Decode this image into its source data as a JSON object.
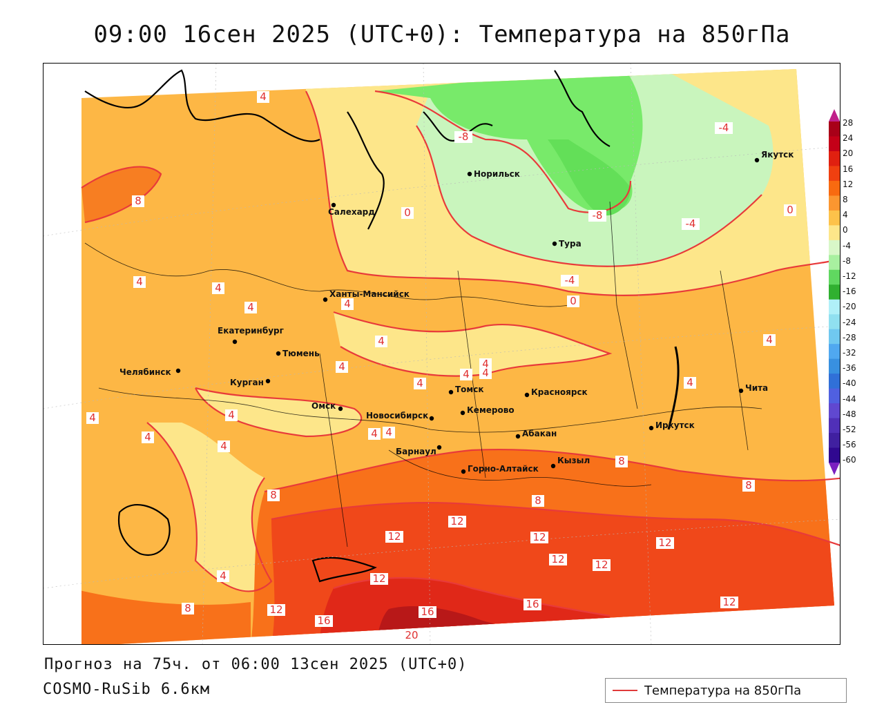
{
  "title": "09:00 16сен 2025 (UTC+0): Температура на 850гПа",
  "forecast": "Прогноз на 75ч. от 06:00 13сен 2025 (UTC+0)",
  "model": "COSMO-RuSib 6.6км",
  "legend": {
    "label": "Температура на 850гПа",
    "line_color": "#e03a3a"
  },
  "colorbar": {
    "labels": [
      "28",
      "24",
      "20",
      "16",
      "12",
      "8",
      "4",
      "0",
      "-4",
      "-8",
      "-12",
      "-16",
      "-20",
      "-24",
      "-28",
      "-32",
      "-36",
      "-40",
      "-44",
      "-48",
      "-52",
      "-56",
      "-60"
    ],
    "colors": [
      "#a80018",
      "#c40018",
      "#e02010",
      "#f04010",
      "#f86a10",
      "#fb9630",
      "#fdc24a",
      "#fde68a",
      "#d8f7c8",
      "#a8f0a0",
      "#60d860",
      "#30b030",
      "#b0f0f8",
      "#90e0f0",
      "#70c8f0",
      "#50a8f0",
      "#3890e0",
      "#3070d8",
      "#5060e0",
      "#6048d0",
      "#5030b8",
      "#4020a0",
      "#300890"
    ],
    "top_arrow_color": "#c0208a",
    "bottom_arrow_color": "#7a20c0"
  },
  "cities": [
    {
      "name": "Норильск"
    },
    {
      "name": "Якутск"
    },
    {
      "name": "Салехард"
    },
    {
      "name": "Тура"
    },
    {
      "name": "Ханты-Мансийск"
    },
    {
      "name": "Екатеринбург"
    },
    {
      "name": "Тюмень"
    },
    {
      "name": "Челябинск"
    },
    {
      "name": "Курган"
    },
    {
      "name": "Омск"
    },
    {
      "name": "Новосибирск"
    },
    {
      "name": "Томск"
    },
    {
      "name": "Кемерово"
    },
    {
      "name": "Красноярск"
    },
    {
      "name": "Чита"
    },
    {
      "name": "Иркутск"
    },
    {
      "name": "Абакан"
    },
    {
      "name": "Барнаул"
    },
    {
      "name": "Горно-Алтайск"
    },
    {
      "name": "Кызыл"
    }
  ],
  "contour_labels": [
    "4",
    "-8",
    "-4",
    "8",
    "0",
    "-8",
    "-4",
    "0",
    "0",
    "-4",
    "4",
    "4",
    "4",
    "4",
    "4",
    "4",
    "4",
    "4",
    "4",
    "4",
    "4",
    "4",
    "4",
    "4",
    "4",
    "4",
    "4",
    "4",
    "8",
    "8",
    "8",
    "8",
    "4",
    "12",
    "12",
    "12",
    "12",
    "12",
    "12",
    "12",
    "12",
    "12",
    "16",
    "16",
    "16",
    "20",
    "8"
  ]
}
